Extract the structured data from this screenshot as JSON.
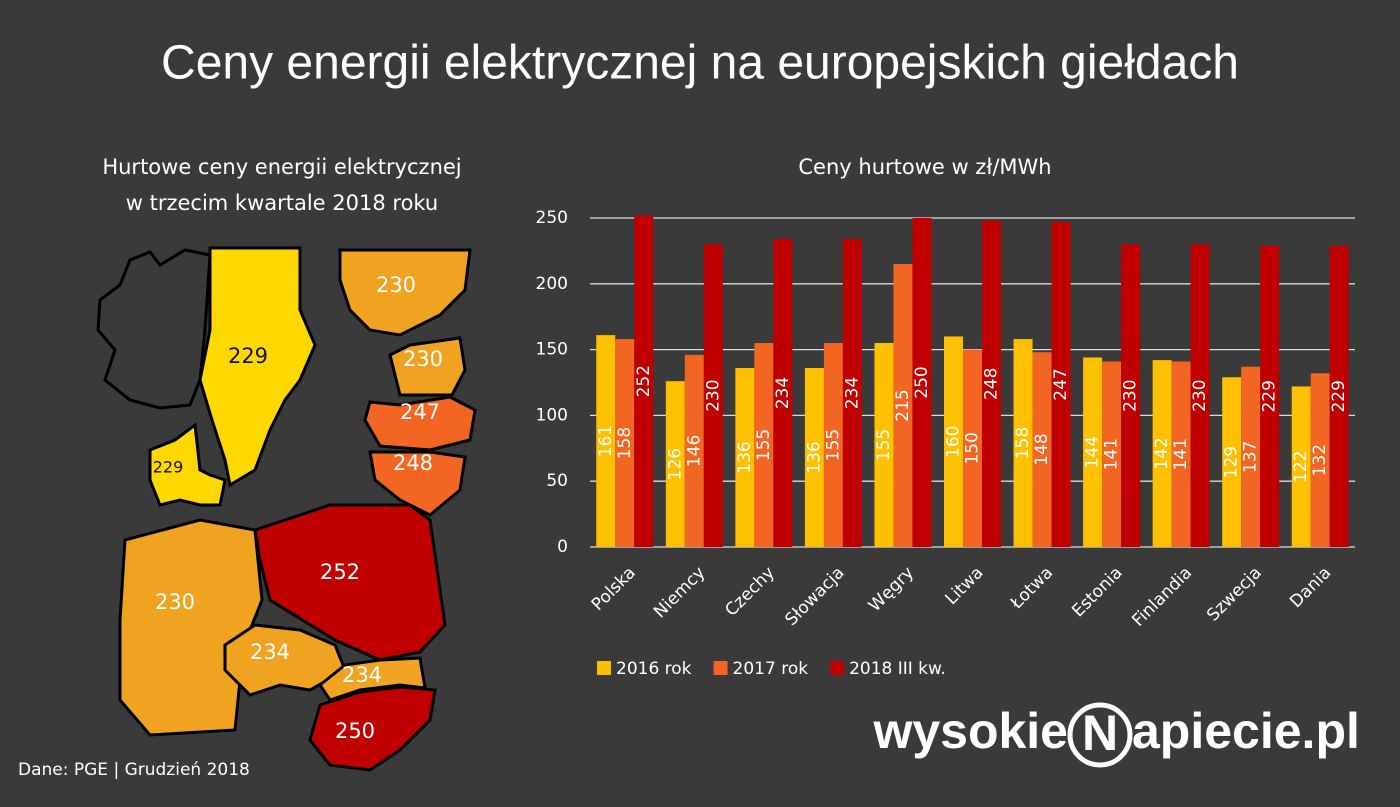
{
  "title": "Ceny energii elektrycznej na europejskich giełdach",
  "map": {
    "title_lines": [
      "Hurtowe ceny energii elektrycznej",
      "w trzecim kwartale 2018 roku"
    ],
    "regions": [
      {
        "label": 229,
        "color": "#ffd800"
      },
      {
        "label": 230,
        "color": "#f0a321"
      },
      {
        "label": 230,
        "color": "#f0a321"
      },
      {
        "label": 247,
        "color": "#f26522"
      },
      {
        "label": 248,
        "color": "#f26522"
      },
      {
        "label": 229,
        "color": "#ffd800"
      },
      {
        "label": 230,
        "color": "#f0a321"
      },
      {
        "label": 252,
        "color": "#c00000"
      },
      {
        "label": 234,
        "color": "#f0a321"
      },
      {
        "label": 234,
        "color": "#f0a321"
      },
      {
        "label": 250,
        "color": "#c00000"
      }
    ]
  },
  "chart_data": {
    "type": "bar",
    "title": "Ceny hurtowe w zł/MWh",
    "categories": [
      "Polska",
      "Niemcy",
      "Czechy",
      "Słowacja",
      "Węgry",
      "Litwa",
      "Łotwa",
      "Estonia",
      "Finlandia",
      "Szwecja",
      "Dania"
    ],
    "series": [
      {
        "name": "2016 rok",
        "color": "#ffc000",
        "values": [
          161,
          126,
          136,
          136,
          155,
          160,
          158,
          144,
          142,
          129,
          122
        ]
      },
      {
        "name": "2017 rok",
        "color": "#f26522",
        "values": [
          158,
          146,
          155,
          155,
          215,
          150,
          148,
          141,
          141,
          137,
          132
        ]
      },
      {
        "name": "2018 III kw.",
        "color": "#c00000",
        "values": [
          252,
          230,
          234,
          234,
          250,
          248,
          247,
          230,
          230,
          229,
          229
        ]
      }
    ],
    "ylim": [
      0,
      250
    ],
    "yticks": [
      0,
      50,
      100,
      150,
      200,
      250
    ],
    "grid": true,
    "legend": "bottom"
  },
  "footer": "Dane: PGE  |  Grudzień 2018",
  "logo": {
    "left": "wysokie",
    "mark": "N",
    "right": "apiecie.pl"
  }
}
